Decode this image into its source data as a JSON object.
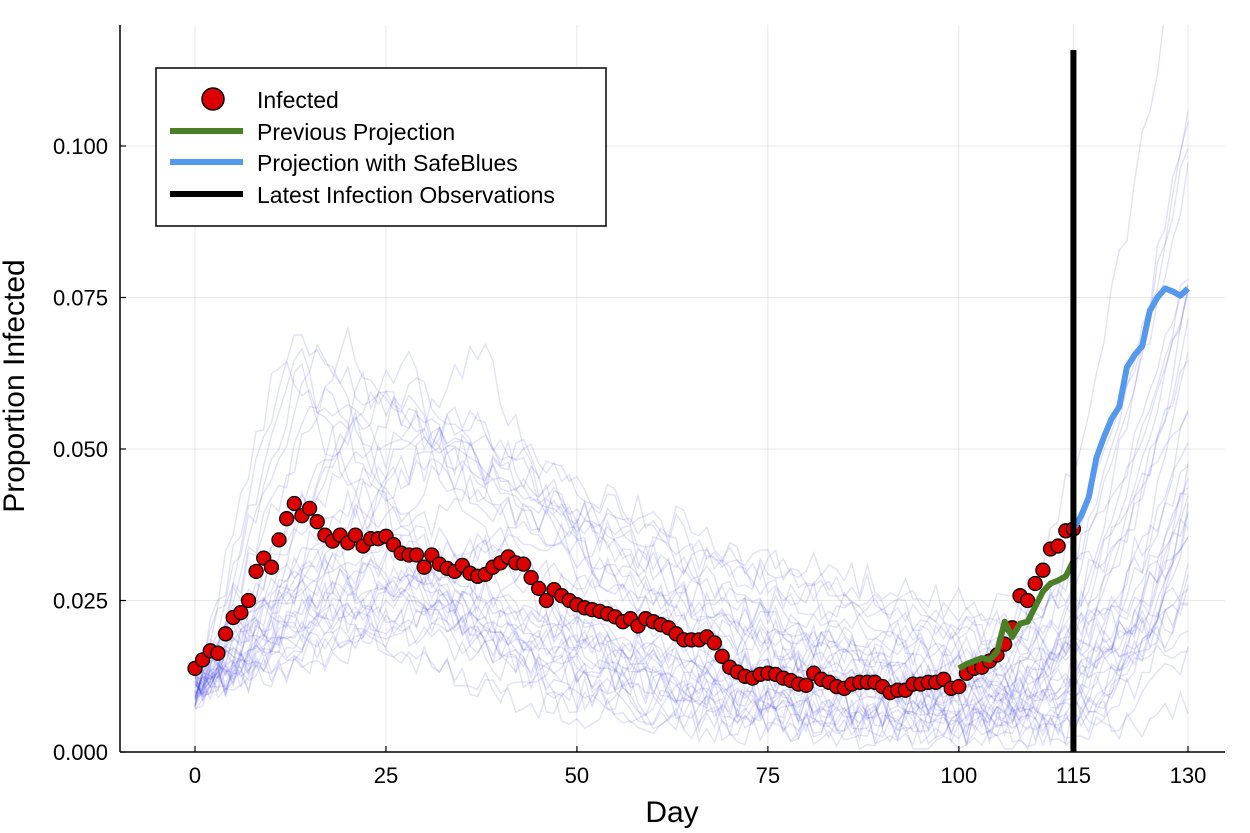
{
  "chart_data": {
    "type": "line",
    "title": "",
    "xlabel": "Day",
    "ylabel": "Proportion Infected",
    "xlim": [
      -10,
      135
    ],
    "ylim": [
      0,
      0.12
    ],
    "x_ticks": [
      0,
      25,
      50,
      75,
      100,
      115,
      130
    ],
    "x_tick_labels": [
      "0",
      "25",
      "50",
      "75",
      "100",
      "115",
      "130"
    ],
    "y_ticks": [
      0.0,
      0.025,
      0.05,
      0.075,
      0.1
    ],
    "y_tick_labels": [
      "0.000",
      "0.025",
      "0.050",
      "0.075",
      "0.100"
    ],
    "grid": true,
    "legend_position": "top-left",
    "legend": [
      {
        "label": "Infected",
        "kind": "marker",
        "color": "#dd0000"
      },
      {
        "label": "Previous Projection",
        "kind": "line",
        "color": "#4a7f26"
      },
      {
        "label": "Projection with SafeBlues",
        "kind": "line",
        "color": "#5599ee"
      },
      {
        "label": "Latest Infection Observations",
        "kind": "line",
        "color": "#000000"
      }
    ],
    "vline_x": 115,
    "series": [
      {
        "name": "Infected",
        "kind": "scatter",
        "color": "#dd0000",
        "x": [
          0,
          1,
          2,
          3,
          4,
          5,
          6,
          7,
          8,
          9,
          10,
          11,
          12,
          13,
          14,
          15,
          16,
          17,
          18,
          19,
          20,
          21,
          22,
          23,
          24,
          25,
          26,
          27,
          28,
          29,
          30,
          31,
          32,
          33,
          34,
          35,
          36,
          37,
          38,
          39,
          40,
          41,
          42,
          43,
          44,
          45,
          46,
          47,
          48,
          49,
          50,
          51,
          52,
          53,
          54,
          55,
          56,
          57,
          58,
          59,
          60,
          61,
          62,
          63,
          64,
          65,
          66,
          67,
          68,
          69,
          70,
          71,
          72,
          73,
          74,
          75,
          76,
          77,
          78,
          79,
          80,
          81,
          82,
          83,
          84,
          85,
          86,
          87,
          88,
          89,
          90,
          91,
          92,
          93,
          94,
          95,
          96,
          97,
          98,
          99,
          100,
          101,
          102,
          103,
          104,
          105,
          106,
          107,
          108,
          109,
          110,
          111,
          112,
          113,
          114,
          115
        ],
        "y": [
          0.0138,
          0.0152,
          0.0167,
          0.0163,
          0.0195,
          0.0222,
          0.023,
          0.025,
          0.0298,
          0.032,
          0.0305,
          0.035,
          0.0385,
          0.041,
          0.039,
          0.0402,
          0.038,
          0.0358,
          0.0348,
          0.0358,
          0.0345,
          0.0358,
          0.034,
          0.0352,
          0.0352,
          0.0356,
          0.0342,
          0.0328,
          0.0325,
          0.0325,
          0.0305,
          0.0325,
          0.031,
          0.0303,
          0.0298,
          0.0308,
          0.0295,
          0.029,
          0.0293,
          0.0305,
          0.0312,
          0.0322,
          0.0312,
          0.031,
          0.0288,
          0.027,
          0.025,
          0.0268,
          0.0258,
          0.025,
          0.0243,
          0.0238,
          0.0235,
          0.0232,
          0.0228,
          0.0223,
          0.0215,
          0.022,
          0.0208,
          0.022,
          0.0215,
          0.021,
          0.0205,
          0.0195,
          0.0185,
          0.0185,
          0.0185,
          0.019,
          0.018,
          0.0158,
          0.014,
          0.0132,
          0.0125,
          0.0122,
          0.0128,
          0.013,
          0.0128,
          0.0122,
          0.0118,
          0.0112,
          0.011,
          0.013,
          0.012,
          0.0115,
          0.0108,
          0.0105,
          0.0112,
          0.0115,
          0.0115,
          0.0115,
          0.0108,
          0.0098,
          0.0102,
          0.0102,
          0.0112,
          0.0112,
          0.0115,
          0.0115,
          0.012,
          0.0105,
          0.0108,
          0.013,
          0.0138,
          0.014,
          0.015,
          0.016,
          0.0178,
          0.0205,
          0.0258,
          0.025,
          0.0278,
          0.03,
          0.0335,
          0.034,
          0.0365,
          0.0368
        ]
      },
      {
        "name": "Previous Projection",
        "kind": "line",
        "color": "#4a7f26",
        "x": [
          100,
          101,
          102,
          103,
          104,
          105,
          106,
          107,
          108,
          109,
          110,
          111,
          112,
          113,
          114,
          115
        ],
        "y": [
          0.0138,
          0.0145,
          0.015,
          0.0155,
          0.0152,
          0.0165,
          0.0215,
          0.019,
          0.0212,
          0.0215,
          0.024,
          0.0265,
          0.0278,
          0.0283,
          0.029,
          0.0315
        ]
      },
      {
        "name": "Projection with SafeBlues",
        "kind": "line",
        "color": "#5599ee",
        "x": [
          115,
          116,
          117,
          118,
          119,
          120,
          121,
          122,
          123,
          124,
          125,
          126,
          127,
          128,
          129,
          130
        ],
        "y": [
          0.0368,
          0.039,
          0.042,
          0.0485,
          0.052,
          0.055,
          0.057,
          0.0635,
          0.0655,
          0.067,
          0.0728,
          0.075,
          0.0765,
          0.076,
          0.0753,
          0.0765
        ]
      }
    ]
  }
}
